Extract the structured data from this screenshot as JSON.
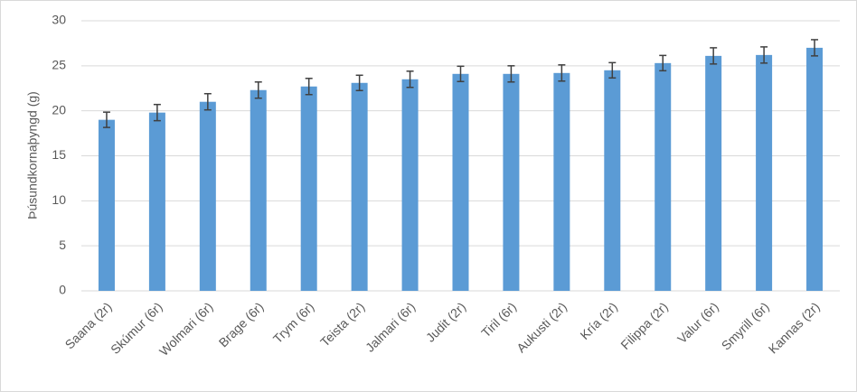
{
  "chart_data": {
    "type": "bar",
    "y_label": "Þúsundkornaþyngd (g)",
    "categories": [
      "Saana (2r)",
      "Skúmur (6r)",
      "Wolmari (6r)",
      "Brage (6r)",
      "Trym (6r)",
      "Teista (2r)",
      "Jalmari (6r)",
      "Judit (2r)",
      "Tiril (6r)",
      "Aukusti (2r)",
      "Kría (2r)",
      "Filippa (2r)",
      "Valur (6r)",
      "Smyrill (6r)",
      "Kannas (2r)"
    ],
    "values": [
      19.0,
      19.8,
      21.0,
      22.3,
      22.7,
      23.1,
      23.5,
      24.1,
      24.1,
      24.2,
      24.5,
      25.3,
      26.1,
      26.2,
      27.0
    ],
    "errors": [
      0.85,
      0.9,
      0.9,
      0.9,
      0.9,
      0.85,
      0.9,
      0.85,
      0.9,
      0.9,
      0.85,
      0.85,
      0.9,
      0.9,
      0.9
    ],
    "color": "#5b9bd5",
    "ylim": [
      0,
      30
    ],
    "yticks": [
      0,
      5,
      10,
      15,
      20,
      25,
      30
    ],
    "grid": true
  }
}
